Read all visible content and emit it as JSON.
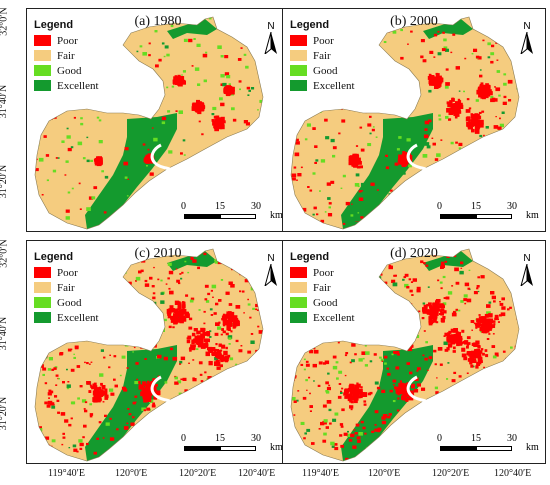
{
  "panels": [
    {
      "title": "(a) 1980"
    },
    {
      "title": "(b) 2000"
    },
    {
      "title": "(c) 2010"
    },
    {
      "title": "(d) 2020"
    }
  ],
  "legend": {
    "heading": "Legend",
    "items": [
      {
        "label": "Poor",
        "color": "#ff0000"
      },
      {
        "label": "Fair",
        "color": "#f5cc7f"
      },
      {
        "label": "Good",
        "color": "#66dd22"
      },
      {
        "label": "Excellent",
        "color": "#149a2e"
      }
    ]
  },
  "north_arrow": {
    "label": "N",
    "icon": "north-arrow-icon"
  },
  "scale": {
    "ticks": [
      "0",
      "15",
      "30"
    ],
    "unit": "km"
  },
  "axes": {
    "lat_labels": [
      "32°0′N",
      "31°40′N",
      "31°20′N"
    ],
    "lon_labels": [
      "119°40′E",
      "120°0′E",
      "120°20′E",
      "120°40′E"
    ]
  },
  "poor_level_by_panel": [
    0.12,
    0.25,
    0.45,
    0.5
  ]
}
